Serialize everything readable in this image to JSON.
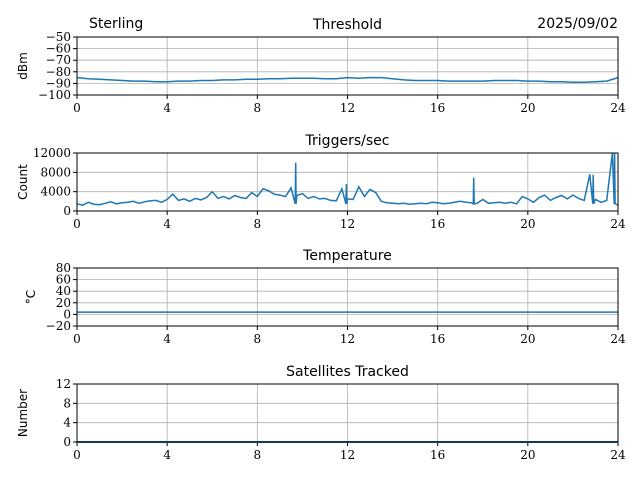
{
  "header": {
    "station": "Sterling",
    "date": "2025/09/02"
  },
  "chart_data": [
    {
      "type": "line",
      "title": "Threshold",
      "ylabel": "dBm",
      "xlim": [
        0,
        24
      ],
      "ylim": [
        -100,
        -50
      ],
      "xticks": [
        0,
        4,
        8,
        12,
        16,
        20,
        24
      ],
      "yticks": [
        -100,
        -90,
        -80,
        -70,
        -60,
        -50
      ],
      "grid": true,
      "color": "#1f77b4",
      "x_step_hours": 0.5,
      "values": [
        -85,
        -86,
        -86.5,
        -87,
        -87.5,
        -88,
        -88,
        -88.5,
        -88.5,
        -88,
        -88,
        -87.5,
        -87.5,
        -87,
        -87,
        -86.5,
        -86.5,
        -86,
        -86,
        -85.5,
        -85.5,
        -85.5,
        -86,
        -86,
        -85,
        -85.5,
        -85,
        -85,
        -86,
        -87,
        -87.5,
        -87.5,
        -87.5,
        -88,
        -88,
        -88,
        -88,
        -87.5,
        -87.5,
        -87.5,
        -88,
        -88,
        -88.5,
        -88.5,
        -89,
        -89,
        -88.5,
        -88,
        -85
      ]
    },
    {
      "type": "line",
      "title": "Triggers/sec",
      "ylabel": "Count",
      "xlim": [
        0,
        24
      ],
      "ylim": [
        0,
        12000
      ],
      "xticks": [
        0,
        4,
        8,
        12,
        16,
        20,
        24
      ],
      "yticks": [
        0,
        4000,
        8000,
        12000
      ],
      "grid": true,
      "color": "#1f77b4",
      "x_step_hours": 0.25,
      "values": [
        1500,
        1200,
        1800,
        1400,
        1300,
        1600,
        1900,
        1500,
        1700,
        1800,
        2000,
        1600,
        1900,
        2100,
        2200,
        1800,
        2400,
        3500,
        2200,
        2500,
        2000,
        2600,
        2300,
        2800,
        4000,
        2600,
        3000,
        2500,
        3200,
        2800,
        2600,
        3800,
        3000,
        4600,
        4200,
        3500,
        3300,
        3000,
        4800,
        3200,
        3600,
        2600,
        3000,
        2500,
        2600,
        2200,
        2100,
        4600,
        2500,
        2400,
        5000,
        3000,
        4500,
        3800,
        2000,
        1700,
        1600,
        1500,
        1600,
        1400,
        1500,
        1600,
        1500,
        1800,
        1700,
        1500,
        1600,
        1800,
        2000,
        1800,
        1700,
        1600,
        2400,
        1600,
        1700,
        1800,
        1600,
        1800,
        1500,
        3000,
        2500,
        1800,
        2800,
        3300,
        2200,
        2800,
        3200,
        2500,
        3300,
        2600,
        2200,
        7600,
        2400,
        1800,
        2200,
        12000,
        1200
      ],
      "spikes": [
        [
          9.7,
          10000
        ],
        [
          17.6,
          6900
        ],
        [
          11.95,
          5600
        ],
        [
          22.9,
          7500
        ],
        [
          23.85,
          12000
        ]
      ]
    },
    {
      "type": "line",
      "title": "Temperature",
      "ylabel": "°C",
      "xlim": [
        0,
        24
      ],
      "ylim": [
        -20,
        80
      ],
      "xticks": [
        0,
        4,
        8,
        12,
        16,
        20,
        24
      ],
      "yticks": [
        -20,
        0,
        20,
        40,
        60,
        80
      ],
      "grid": true,
      "color": "#1f77b4",
      "x_step_hours": 6,
      "values": [
        4,
        4,
        4,
        4,
        4
      ]
    },
    {
      "type": "line",
      "title": "Satellites Tracked",
      "ylabel": "Number",
      "xlim": [
        0,
        24
      ],
      "ylim": [
        0,
        12
      ],
      "xticks": [
        0,
        4,
        8,
        12,
        16,
        20,
        24
      ],
      "yticks": [
        0,
        4,
        8,
        12
      ],
      "grid": true,
      "color": "#1f77b4",
      "x_step_hours": 6,
      "values": [
        0,
        0,
        0,
        0,
        0
      ]
    }
  ]
}
